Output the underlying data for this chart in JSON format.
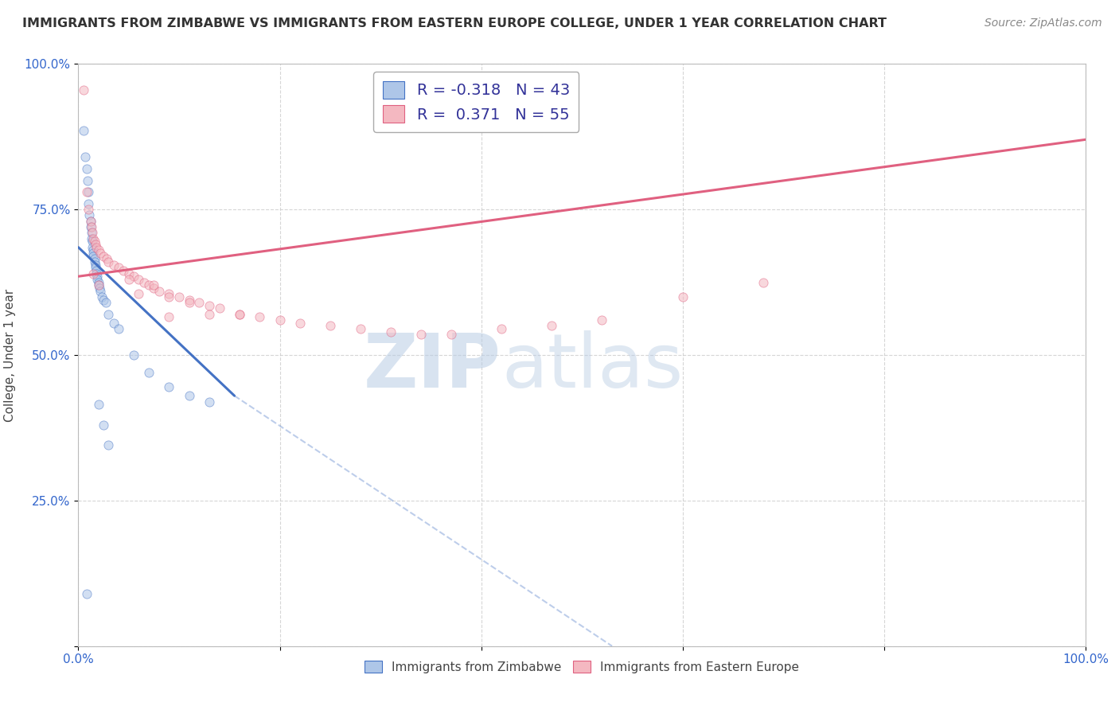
{
  "title": "IMMIGRANTS FROM ZIMBABWE VS IMMIGRANTS FROM EASTERN EUROPE COLLEGE, UNDER 1 YEAR CORRELATION CHART",
  "source": "Source: ZipAtlas.com",
  "ylabel": "College, Under 1 year",
  "legend1_label": "R = -0.318   N = 43",
  "legend2_label": "R =  0.371   N = 55",
  "legend1_color_fill": "#aec6e8",
  "legend2_color_fill": "#f4b8c1",
  "line1_color": "#4472c4",
  "line2_color": "#e06080",
  "watermark_text": "ZIPatlas",
  "background_color": "#ffffff",
  "grid_color": "#cccccc",
  "dot_size": 65,
  "dot_alpha": 0.55,
  "line1_x0": 0.0,
  "line1_y0": 0.685,
  "line1_x1": 0.155,
  "line1_y1": 0.43,
  "line1_dash_x1": 0.53,
  "line1_dash_y1": 0.0,
  "line2_x0": 0.0,
  "line2_y0": 0.635,
  "line2_x1": 1.0,
  "line2_y1": 0.87,
  "blue_x": [
    0.005,
    0.007,
    0.008,
    0.009,
    0.01,
    0.01,
    0.011,
    0.012,
    0.012,
    0.013,
    0.013,
    0.014,
    0.014,
    0.015,
    0.015,
    0.015,
    0.016,
    0.016,
    0.017,
    0.017,
    0.018,
    0.018,
    0.019,
    0.019,
    0.02,
    0.02,
    0.021,
    0.022,
    0.023,
    0.025,
    0.027,
    0.03,
    0.035,
    0.04,
    0.055,
    0.07,
    0.09,
    0.11,
    0.13,
    0.02,
    0.025,
    0.03,
    0.008
  ],
  "blue_y": [
    0.885,
    0.84,
    0.82,
    0.8,
    0.78,
    0.76,
    0.74,
    0.73,
    0.72,
    0.71,
    0.7,
    0.695,
    0.685,
    0.68,
    0.675,
    0.67,
    0.665,
    0.66,
    0.655,
    0.65,
    0.645,
    0.64,
    0.635,
    0.63,
    0.625,
    0.62,
    0.615,
    0.61,
    0.6,
    0.595,
    0.59,
    0.57,
    0.555,
    0.545,
    0.5,
    0.47,
    0.445,
    0.43,
    0.42,
    0.415,
    0.38,
    0.345,
    0.09
  ],
  "pink_x": [
    0.005,
    0.008,
    0.01,
    0.012,
    0.013,
    0.014,
    0.015,
    0.016,
    0.017,
    0.018,
    0.02,
    0.022,
    0.025,
    0.028,
    0.03,
    0.035,
    0.04,
    0.045,
    0.05,
    0.055,
    0.06,
    0.065,
    0.07,
    0.075,
    0.08,
    0.09,
    0.1,
    0.11,
    0.12,
    0.13,
    0.14,
    0.16,
    0.18,
    0.2,
    0.22,
    0.25,
    0.28,
    0.31,
    0.34,
    0.37,
    0.42,
    0.47,
    0.52,
    0.6,
    0.68,
    0.05,
    0.06,
    0.075,
    0.09,
    0.11,
    0.13,
    0.16,
    0.09,
    0.015,
    0.02
  ],
  "pink_y": [
    0.955,
    0.78,
    0.75,
    0.73,
    0.72,
    0.71,
    0.7,
    0.695,
    0.69,
    0.685,
    0.68,
    0.675,
    0.67,
    0.665,
    0.66,
    0.655,
    0.65,
    0.645,
    0.64,
    0.635,
    0.63,
    0.625,
    0.62,
    0.615,
    0.61,
    0.605,
    0.6,
    0.595,
    0.59,
    0.585,
    0.58,
    0.57,
    0.565,
    0.56,
    0.555,
    0.55,
    0.545,
    0.54,
    0.535,
    0.535,
    0.545,
    0.55,
    0.56,
    0.6,
    0.625,
    0.63,
    0.605,
    0.62,
    0.6,
    0.59,
    0.57,
    0.57,
    0.565,
    0.64,
    0.62
  ],
  "xlim": [
    0.0,
    1.0
  ],
  "ylim": [
    0.0,
    1.0
  ],
  "x_ticks": [
    0.0,
    0.2,
    0.4,
    0.6,
    0.8,
    1.0
  ],
  "x_tick_labels": [
    "0.0%",
    "",
    "",
    "",
    "",
    "100.0%"
  ],
  "y_ticks": [
    0.0,
    0.25,
    0.5,
    0.75,
    1.0
  ],
  "y_tick_labels": [
    "",
    "25.0%",
    "50.0%",
    "75.0%",
    "100.0%"
  ]
}
